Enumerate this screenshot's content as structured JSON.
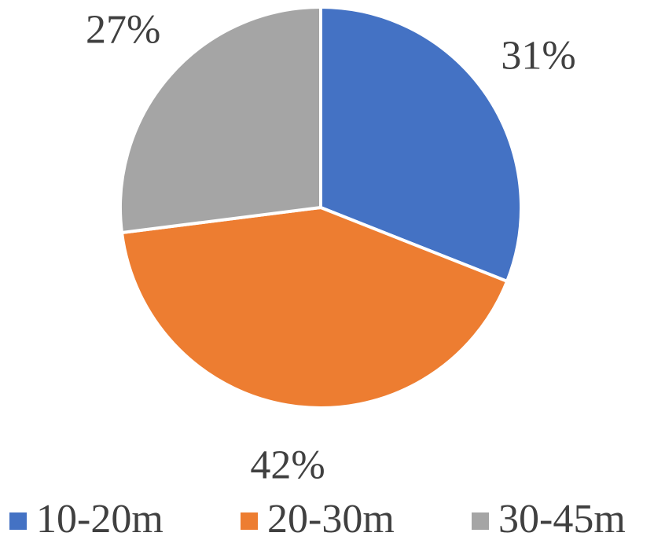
{
  "chart_data": {
    "type": "pie",
    "categories": [
      "10-20m",
      "20-30m",
      "30-45m"
    ],
    "values": [
      31,
      42,
      27
    ],
    "value_labels": [
      "31%",
      "42%",
      "27%"
    ],
    "colors": [
      "#4472c4",
      "#ed7d31",
      "#a5a5a5"
    ],
    "legend": "bottom"
  }
}
